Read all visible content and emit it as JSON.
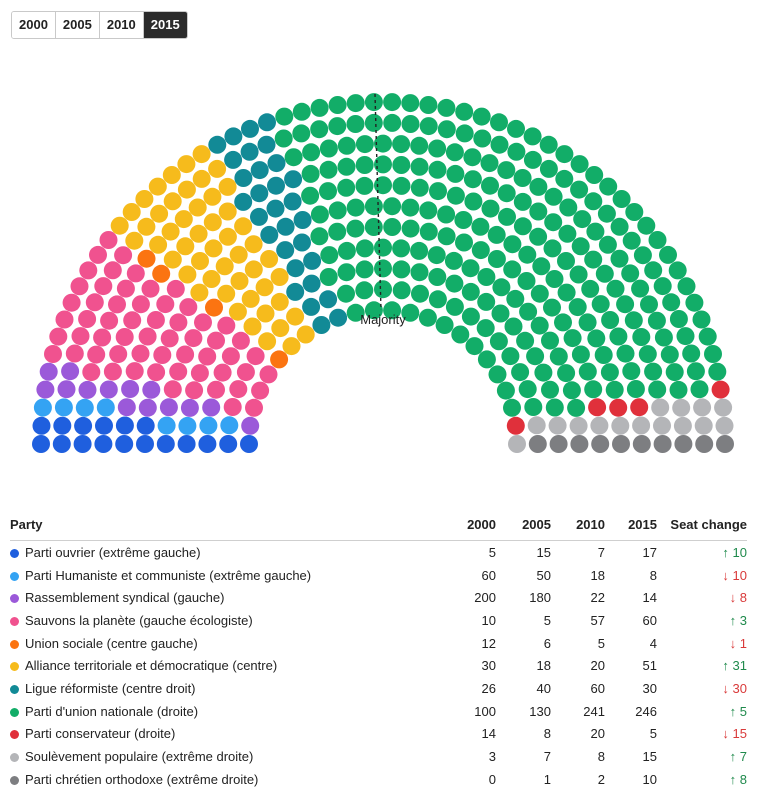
{
  "year_tabs": [
    "2000",
    "2005",
    "2010",
    "2015"
  ],
  "selected_year": "2015",
  "chart_data": {
    "type": "parliament",
    "majority_label": "Majority",
    "total_seats": 460,
    "shown_year": "2015",
    "headers": [
      "Party",
      "2000",
      "2005",
      "2010",
      "2015",
      "Seat change"
    ],
    "series": [
      {
        "name": "Parti ouvrier (extrême gauche)",
        "color": "#1f5fde",
        "seats": [
          5,
          15,
          7,
          17
        ],
        "change": "↑ 10",
        "trend": "up"
      },
      {
        "name": "Parti Humaniste et communiste (extrême gauche)",
        "color": "#34a3f3",
        "seats": [
          60,
          50,
          18,
          8
        ],
        "change": "↓ 10",
        "trend": "down"
      },
      {
        "name": "Rassemblement syndical (gauche)",
        "color": "#9b59d9",
        "seats": [
          200,
          180,
          22,
          14
        ],
        "change": "↓ 8",
        "trend": "down"
      },
      {
        "name": "Sauvons la planète (gauche écologiste)",
        "color": "#f0528f",
        "seats": [
          10,
          5,
          57,
          60
        ],
        "change": "↑ 3",
        "trend": "up"
      },
      {
        "name": "Union sociale (centre gauche)",
        "color": "#fb7411",
        "seats": [
          12,
          6,
          5,
          4
        ],
        "change": "↓ 1",
        "trend": "down"
      },
      {
        "name": "Alliance territoriale et démocratique (centre)",
        "color": "#f6bb1c",
        "seats": [
          30,
          18,
          20,
          51
        ],
        "change": "↑ 31",
        "trend": "up"
      },
      {
        "name": "Ligue réformiste (centre droit)",
        "color": "#128a96",
        "seats": [
          26,
          40,
          60,
          30
        ],
        "change": "↓ 30",
        "trend": "down"
      },
      {
        "name": "Parti d'union nationale (droite)",
        "color": "#12ad68",
        "seats": [
          100,
          130,
          241,
          246
        ],
        "change": "↑ 5",
        "trend": "up"
      },
      {
        "name": "Parti conservateur (droite)",
        "color": "#e0303b",
        "seats": [
          14,
          8,
          20,
          5
        ],
        "change": "↓ 15",
        "trend": "down"
      },
      {
        "name": "Soulèvement populaire (extrême droite)",
        "color": "#b4b5b8",
        "seats": [
          3,
          7,
          8,
          15
        ],
        "change": "↑ 7",
        "trend": "up"
      },
      {
        "name": "Parti chrétien orthodoxe (extrême droite)",
        "color": "#7d7e81",
        "seats": [
          0,
          1,
          2,
          10
        ],
        "change": "↑ 8",
        "trend": "up"
      }
    ]
  }
}
